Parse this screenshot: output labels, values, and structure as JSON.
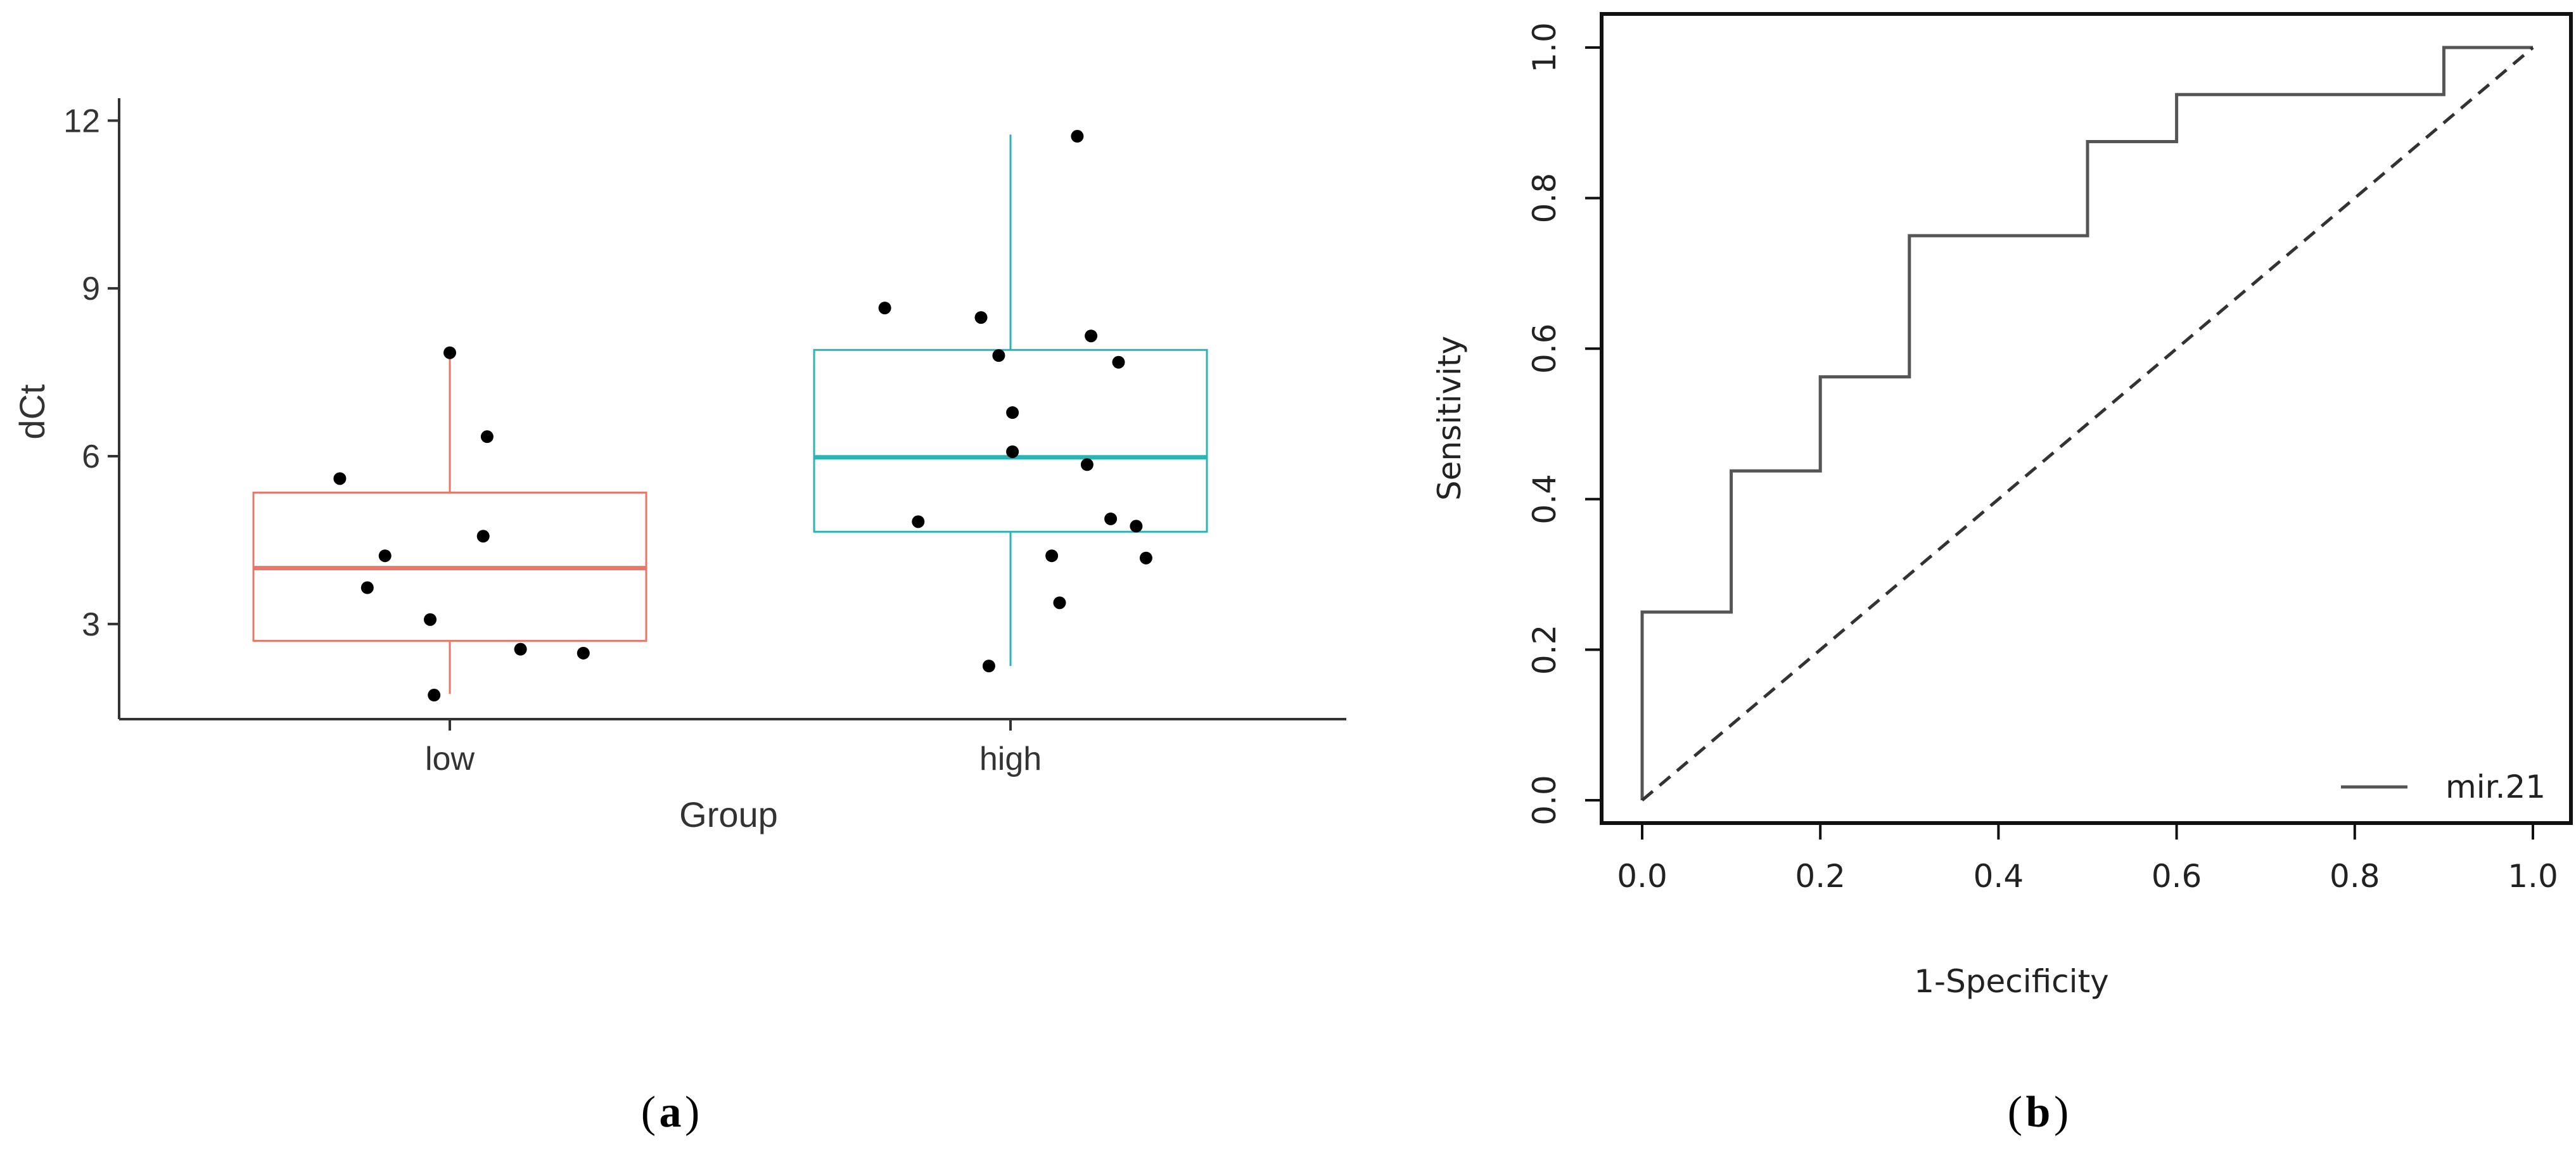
{
  "chart_data": [
    {
      "type": "box",
      "panel_label": "a",
      "title": "",
      "xlabel": "Group",
      "ylabel": "dCt",
      "categories": [
        "low",
        "high"
      ],
      "yticks": [
        3,
        6,
        9,
        12
      ],
      "ylim": [
        1.3,
        12.4
      ],
      "colors": {
        "low": "#e8776a",
        "high": "#2bb3b5"
      },
      "boxes": [
        {
          "name": "low",
          "q1": 2.7,
          "median": 4.0,
          "q3": 5.35,
          "whisker_low": 1.75,
          "whisker_high": 7.85
        },
        {
          "name": "high",
          "q1": 4.65,
          "median": 5.98,
          "q3": 7.9,
          "whisker_low": 2.25,
          "whisker_high": 11.75
        }
      ],
      "points": {
        "low": [
          {
            "dx": -0.56,
            "y": 5.6
          },
          {
            "dx": -0.42,
            "y": 3.65
          },
          {
            "dx": -0.33,
            "y": 4.22
          },
          {
            "dx": -0.1,
            "y": 3.08
          },
          {
            "dx": -0.08,
            "y": 1.73
          },
          {
            "dx": 0.0,
            "y": 7.85
          },
          {
            "dx": 0.17,
            "y": 4.57
          },
          {
            "dx": 0.19,
            "y": 6.35
          },
          {
            "dx": 0.36,
            "y": 2.55
          },
          {
            "dx": 0.68,
            "y": 2.48
          }
        ],
        "high": [
          {
            "dx": -0.64,
            "y": 8.65
          },
          {
            "dx": -0.47,
            "y": 4.83
          },
          {
            "dx": -0.15,
            "y": 8.48
          },
          {
            "dx": -0.11,
            "y": 2.25
          },
          {
            "dx": -0.06,
            "y": 7.8
          },
          {
            "dx": 0.01,
            "y": 6.78
          },
          {
            "dx": 0.01,
            "y": 6.08
          },
          {
            "dx": 0.21,
            "y": 4.22
          },
          {
            "dx": 0.25,
            "y": 3.38
          },
          {
            "dx": 0.34,
            "y": 11.72
          },
          {
            "dx": 0.39,
            "y": 5.85
          },
          {
            "dx": 0.41,
            "y": 8.15
          },
          {
            "dx": 0.51,
            "y": 4.88
          },
          {
            "dx": 0.55,
            "y": 7.68
          },
          {
            "dx": 0.64,
            "y": 4.75
          },
          {
            "dx": 0.69,
            "y": 4.18
          }
        ]
      }
    },
    {
      "type": "line",
      "panel_label": "b",
      "title": "",
      "xlabel": "1-Specificity",
      "ylabel": "Sensitivity",
      "xlim": [
        0,
        1
      ],
      "ylim": [
        0,
        1
      ],
      "xticks": [
        "0.0",
        "0.2",
        "0.4",
        "0.6",
        "0.8",
        "1.0"
      ],
      "yticks": [
        "0.0",
        "0.2",
        "0.4",
        "0.6",
        "0.8",
        "1.0"
      ],
      "legend": {
        "position": "bottom-right",
        "entries": [
          "mir.21"
        ]
      },
      "series": [
        {
          "name": "mir.21",
          "style": "step",
          "x": [
            0,
            0,
            0.1,
            0.1,
            0.2,
            0.2,
            0.3,
            0.3,
            0.5,
            0.5,
            0.6,
            0.6,
            0.9,
            0.9,
            1.0
          ],
          "y": [
            0,
            0.25,
            0.25,
            0.4375,
            0.4375,
            0.5625,
            0.5625,
            0.75,
            0.75,
            0.875,
            0.875,
            0.9375,
            0.9375,
            1.0,
            1.0
          ]
        },
        {
          "name": "reference",
          "style": "dashed",
          "x": [
            0,
            1
          ],
          "y": [
            0,
            1
          ]
        }
      ]
    }
  ],
  "captions": {
    "a": "a",
    "b": "b"
  }
}
